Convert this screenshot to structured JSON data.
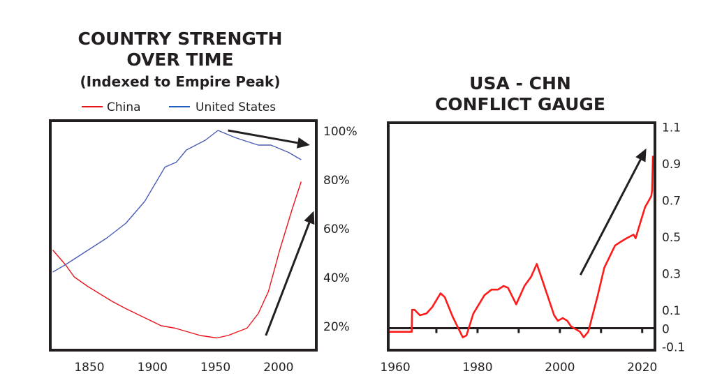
{
  "chart_data": [
    {
      "type": "line",
      "title": "COUNTRY STRENGTH",
      "title_line2": "OVER TIME",
      "subtitle": "(Indexed to Empire Peak)",
      "xlabel": "",
      "ylabel": "",
      "xlim": [
        1819,
        2030
      ],
      "ylim": [
        10,
        104
      ],
      "x_ticks": [
        "1850",
        "1900",
        "1950",
        "2000"
      ],
      "x_tick_values": [
        1850,
        1900,
        1950,
        2000
      ],
      "y_ticks": [
        "20%",
        "40%",
        "60%",
        "80%",
        "100%"
      ],
      "y_tick_values": [
        20,
        40,
        60,
        80,
        100
      ],
      "y_axis_side": "right",
      "legend_position": "top",
      "grid": false,
      "series": [
        {
          "name": "China",
          "color": "#e8141c",
          "x": [
            1821,
            1831,
            1838,
            1849,
            1868,
            1879,
            1907,
            1918,
            1938,
            1951,
            1960,
            1975,
            1984,
            1992,
            2001,
            2011,
            2018
          ],
          "y": [
            51,
            45,
            40,
            36,
            30,
            27,
            20,
            19,
            16,
            15,
            16,
            19,
            25,
            34,
            51,
            68,
            79
          ]
        },
        {
          "name": "United States",
          "color": "#4a5db5",
          "x": [
            1821,
            1831,
            1849,
            1864,
            1879,
            1894,
            1910,
            1919,
            1927,
            1942,
            1952,
            1966,
            1984,
            1994,
            2008,
            2018
          ],
          "y": [
            42,
            45,
            51,
            56,
            62,
            71,
            85,
            87,
            92,
            96,
            100,
            97,
            94,
            94,
            91,
            88
          ]
        }
      ],
      "annotations": [
        {
          "type": "arrow",
          "direction": "down",
          "near": "United States",
          "from": [
            1960,
            100
          ],
          "to": [
            2025,
            94
          ]
        },
        {
          "type": "arrow",
          "direction": "up",
          "near": "China",
          "from": [
            1990,
            16
          ],
          "to": [
            2028,
            67
          ]
        }
      ]
    },
    {
      "type": "line",
      "title": "USA - CHN",
      "title_line2": "CONFLICT GAUGE",
      "xlabel": "",
      "ylabel": "",
      "xlim": [
        1958.3,
        2023.1
      ],
      "ylim": [
        -0.12,
        1.12
      ],
      "x_ticks": [
        "1960",
        "1980",
        "2000",
        "2020"
      ],
      "x_tick_values": [
        1960,
        1980,
        2000,
        2020
      ],
      "x_minor_ticks": [
        1970,
        1980,
        1990,
        2000,
        2010,
        2020
      ],
      "y_ticks": [
        "1.1",
        "0.9",
        "0.7",
        "0.5",
        "0.3",
        "0.1",
        "0",
        "-0.1"
      ],
      "y_tick_values": [
        1.1,
        0.9,
        0.7,
        0.5,
        0.3,
        0.1,
        0,
        -0.1
      ],
      "y_axis_side": "right",
      "zero_line": true,
      "grid": false,
      "series": [
        {
          "name": "Conflict Gauge",
          "color": "#ff1a1a",
          "x": [
            1958.5,
            1964,
            1964.1,
            1964.7,
            1966,
            1967.6,
            1969,
            1971,
            1972,
            1974,
            1976.4,
            1977.3,
            1979,
            1981.7,
            1983.4,
            1985,
            1986.3,
            1987.4,
            1989.4,
            1991.4,
            1993,
            1994.4,
            1995.9,
            1998.6,
            1999.5,
            2000.7,
            2001.8,
            2002.7,
            2004.9,
            2005.8,
            2006.9,
            2009.1,
            2010.8,
            2013.4,
            2014.7,
            2016.2,
            2017.9,
            2018.4,
            2019.6,
            2020.7,
            2022.2,
            2022.4,
            2022.6
          ],
          "y": [
            -0.02,
            -0.02,
            0.1,
            0.1,
            0.07,
            0.08,
            0.115,
            0.19,
            0.17,
            0.06,
            -0.05,
            -0.04,
            0.08,
            0.18,
            0.21,
            0.21,
            0.23,
            0.22,
            0.13,
            0.23,
            0.28,
            0.35,
            0.25,
            0.07,
            0.04,
            0.055,
            0.04,
            0.01,
            -0.02,
            -0.05,
            -0.02,
            0.17,
            0.33,
            0.45,
            0.47,
            0.49,
            0.51,
            0.49,
            0.58,
            0.66,
            0.72,
            0.75,
            0.94
          ]
        }
      ],
      "annotations": [
        {
          "type": "arrow",
          "direction": "up",
          "from": [
            2005,
            0.29
          ],
          "to": [
            2021,
            0.98
          ]
        }
      ]
    }
  ]
}
